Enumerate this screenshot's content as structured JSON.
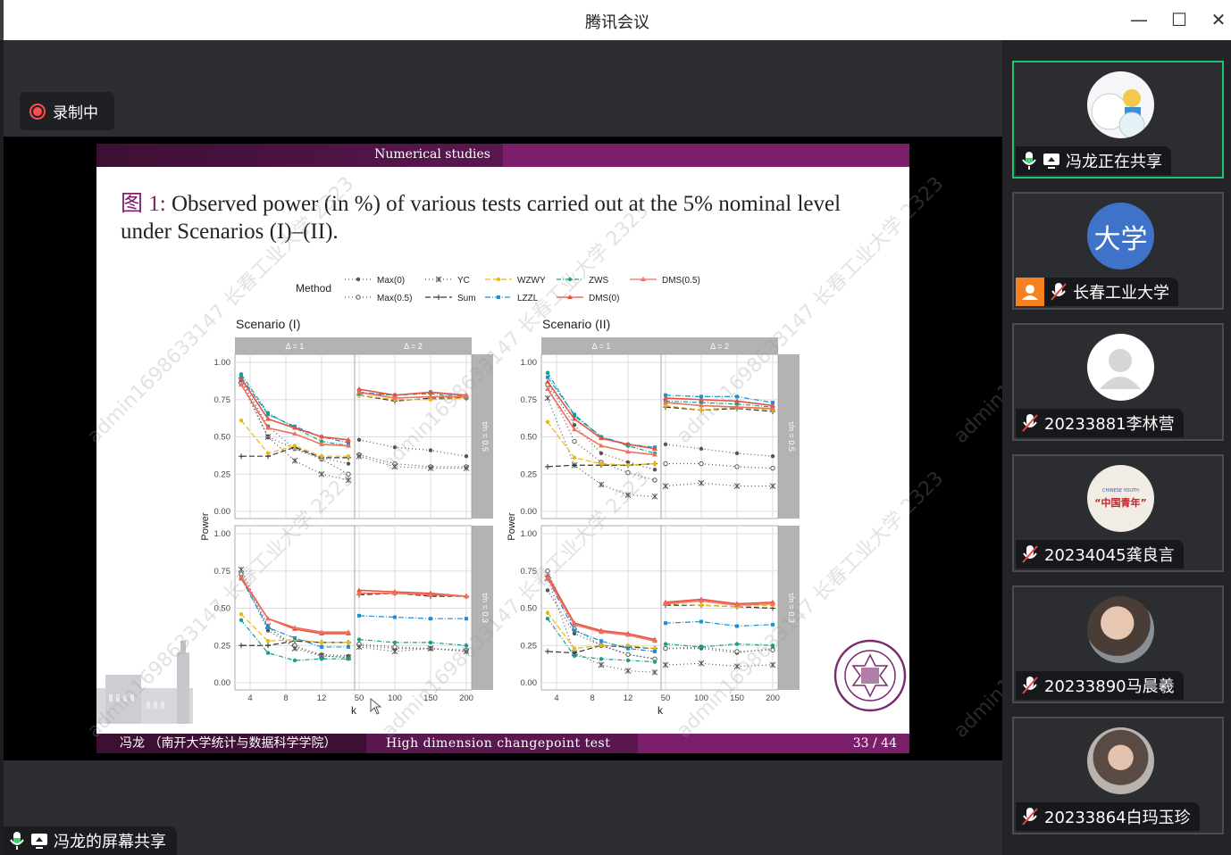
{
  "window": {
    "title": "腾讯会议"
  },
  "recording": {
    "label": "录制中"
  },
  "slide": {
    "header": "Numerical studies",
    "figure_prefix": "图 1:",
    "caption": " Observed power (in %) of various tests carried out at the 5% nominal level under Scenarios (I)–(II).",
    "footer_author": "冯龙 （南开大学统计与数据科学学院）",
    "footer_title": "High dimension changepoint test",
    "footer_page": "33 / 44",
    "seal_text": "NANKAI UNIVERSITY 1919"
  },
  "watermark": "admin1698633147 长春工业大学 2323",
  "chart_data": {
    "type": "line",
    "legend": {
      "title": "Method",
      "placement": "top",
      "entries": [
        "Max(0)",
        "Max(0.5)",
        "YC",
        "Sum",
        "WZWY",
        "LZZL",
        "ZWS",
        "DMS(0)",
        "DMS(0.5)"
      ]
    },
    "colors": {
      "Max(0)": "#555555",
      "Max(0.5)": "#555555",
      "YC": "#555555",
      "Sum": "#333333",
      "WZWY": "#e8b90c",
      "LZZL": "#1b8fd8",
      "ZWS": "#16a08a",
      "DMS(0)": "#e8523f",
      "DMS(0.5)": "#f07060"
    },
    "ylabel": "Power",
    "xlabel": "k",
    "ylim": [
      0,
      1
    ],
    "yticks": [
      "0.00",
      "0.25",
      "0.50",
      "0.75",
      "1.00"
    ],
    "facet_cols": [
      "Δ = 1",
      "Δ = 2"
    ],
    "facet_rows": [
      "τ/n = 0.5",
      "τ/n = 0.3"
    ],
    "x_delta1": [
      3,
      6,
      9,
      12,
      15
    ],
    "xticks_delta1": [
      "4",
      "8",
      "12"
    ],
    "x_delta2": [
      50,
      100,
      150,
      200
    ],
    "xticks_delta2": [
      "50",
      "100",
      "150",
      "200"
    ],
    "scenarios": [
      {
        "title": "Scenario (I)",
        "panels": [
          {
            "row": 0,
            "col": 0,
            "values": {
              "Max(0)": [
                0.88,
                0.57,
                0.42,
                0.36,
                0.32
              ],
              "Max(0.5)": [
                0.86,
                0.5,
                0.42,
                0.35,
                0.25
              ],
              "YC": [
                0.88,
                0.5,
                0.34,
                0.25,
                0.21
              ],
              "Sum": [
                0.37,
                0.37,
                0.43,
                0.36,
                0.36
              ],
              "WZWY": [
                0.61,
                0.39,
                0.44,
                0.37,
                0.37
              ],
              "LZZL": [
                0.9,
                0.65,
                0.57,
                0.5,
                0.46
              ],
              "ZWS": [
                0.92,
                0.66,
                0.56,
                0.47,
                0.44
              ],
              "DMS(0)": [
                0.89,
                0.62,
                0.56,
                0.5,
                0.48
              ],
              "DMS(0.5)": [
                0.85,
                0.56,
                0.52,
                0.45,
                0.44
              ]
            }
          },
          {
            "row": 0,
            "col": 1,
            "values": {
              "Max(0)": [
                0.48,
                0.43,
                0.41,
                0.37
              ],
              "Max(0.5)": [
                0.38,
                0.32,
                0.3,
                0.3
              ],
              "YC": [
                0.37,
                0.3,
                0.29,
                0.29
              ],
              "Sum": [
                0.78,
                0.74,
                0.76,
                0.76
              ],
              "WZWY": [
                0.78,
                0.75,
                0.75,
                0.76
              ],
              "LZZL": [
                0.8,
                0.78,
                0.8,
                0.77
              ],
              "ZWS": [
                0.79,
                0.78,
                0.79,
                0.76
              ],
              "DMS(0)": [
                0.82,
                0.78,
                0.8,
                0.78
              ],
              "DMS(0.5)": [
                0.8,
                0.76,
                0.77,
                0.77
              ]
            }
          },
          {
            "row": 1,
            "col": 0,
            "values": {
              "Max(0)": [
                0.72,
                0.35,
                0.24,
                0.19,
                0.18
              ],
              "Max(0.5)": [
                0.73,
                0.37,
                0.25,
                0.18,
                0.17
              ],
              "YC": [
                0.76,
                0.38,
                0.23,
                0.18,
                0.17
              ],
              "Sum": [
                0.25,
                0.25,
                0.28,
                0.27,
                0.27
              ],
              "WZWY": [
                0.46,
                0.28,
                0.29,
                0.27,
                0.27
              ],
              "LZZL": [
                0.7,
                0.37,
                0.3,
                0.24,
                0.24
              ],
              "ZWS": [
                0.42,
                0.2,
                0.15,
                0.16,
                0.16
              ],
              "DMS(0)": [
                0.7,
                0.43,
                0.36,
                0.33,
                0.33
              ],
              "DMS(0.5)": [
                0.71,
                0.43,
                0.37,
                0.34,
                0.34
              ]
            }
          },
          {
            "row": 1,
            "col": 1,
            "values": {
              "Max(0)": [
                0.25,
                0.23,
                0.23,
                0.21
              ],
              "Max(0.5)": [
                0.26,
                0.24,
                0.23,
                0.22
              ],
              "YC": [
                0.24,
                0.21,
                0.23,
                0.21
              ],
              "Sum": [
                0.59,
                0.6,
                0.58,
                0.58
              ],
              "WZWY": [
                0.6,
                0.6,
                0.59,
                0.58
              ],
              "LZZL": [
                0.45,
                0.44,
                0.43,
                0.43
              ],
              "ZWS": [
                0.29,
                0.27,
                0.27,
                0.25
              ],
              "DMS(0)": [
                0.62,
                0.61,
                0.6,
                0.58
              ],
              "DMS(0.5)": [
                0.6,
                0.6,
                0.59,
                0.58
              ]
            }
          }
        ]
      },
      {
        "title": "Scenario (II)",
        "panels": [
          {
            "row": 0,
            "col": 0,
            "values": {
              "Max(0)": [
                0.86,
                0.58,
                0.39,
                0.33,
                0.28
              ],
              "Max(0.5)": [
                0.85,
                0.47,
                0.33,
                0.26,
                0.21
              ],
              "YC": [
                0.76,
                0.31,
                0.18,
                0.11,
                0.1
              ],
              "Sum": [
                0.3,
                0.31,
                0.31,
                0.31,
                0.32
              ],
              "WZWY": [
                0.6,
                0.36,
                0.32,
                0.31,
                0.32
              ],
              "LZZL": [
                0.9,
                0.65,
                0.5,
                0.45,
                0.43
              ],
              "ZWS": [
                0.93,
                0.64,
                0.5,
                0.44,
                0.39
              ],
              "DMS(0)": [
                0.87,
                0.62,
                0.49,
                0.45,
                0.42
              ],
              "DMS(0.5)": [
                0.82,
                0.55,
                0.44,
                0.4,
                0.38
              ]
            }
          },
          {
            "row": 0,
            "col": 1,
            "values": {
              "Max(0)": [
                0.45,
                0.42,
                0.39,
                0.37
              ],
              "Max(0.5)": [
                0.32,
                0.32,
                0.3,
                0.29
              ],
              "YC": [
                0.17,
                0.19,
                0.17,
                0.17
              ],
              "Sum": [
                0.7,
                0.68,
                0.69,
                0.67
              ],
              "WZWY": [
                0.71,
                0.68,
                0.7,
                0.68
              ],
              "LZZL": [
                0.78,
                0.77,
                0.77,
                0.73
              ],
              "ZWS": [
                0.74,
                0.73,
                0.72,
                0.7
              ],
              "DMS(0)": [
                0.76,
                0.75,
                0.74,
                0.71
              ],
              "DMS(0.5)": [
                0.73,
                0.71,
                0.7,
                0.69
              ]
            }
          },
          {
            "row": 1,
            "col": 0,
            "values": {
              "Max(0)": [
                0.62,
                0.33,
                0.25,
                0.19,
                0.16
              ],
              "Max(0.5)": [
                0.75,
                0.36,
                0.25,
                0.19,
                0.16
              ],
              "YC": [
                0.7,
                0.2,
                0.12,
                0.08,
                0.07
              ],
              "Sum": [
                0.21,
                0.2,
                0.25,
                0.24,
                0.23
              ],
              "WZWY": [
                0.47,
                0.23,
                0.25,
                0.25,
                0.23
              ],
              "LZZL": [
                0.7,
                0.35,
                0.28,
                0.23,
                0.21
              ],
              "ZWS": [
                0.43,
                0.18,
                0.16,
                0.15,
                0.14
              ],
              "DMS(0)": [
                0.72,
                0.4,
                0.35,
                0.33,
                0.29
              ],
              "DMS(0.5)": [
                0.7,
                0.39,
                0.34,
                0.32,
                0.28
              ]
            }
          },
          {
            "row": 1,
            "col": 1,
            "values": {
              "Max(0)": [
                0.23,
                0.23,
                0.2,
                0.23
              ],
              "Max(0.5)": [
                0.23,
                0.24,
                0.21,
                0.22
              ],
              "YC": [
                0.12,
                0.13,
                0.11,
                0.12
              ],
              "Sum": [
                0.52,
                0.52,
                0.51,
                0.5
              ],
              "WZWY": [
                0.53,
                0.52,
                0.51,
                0.52
              ],
              "LZZL": [
                0.4,
                0.41,
                0.38,
                0.39
              ],
              "ZWS": [
                0.26,
                0.24,
                0.26,
                0.25
              ],
              "DMS(0)": [
                0.54,
                0.56,
                0.53,
                0.54
              ],
              "DMS(0.5)": [
                0.53,
                0.55,
                0.52,
                0.53
              ]
            }
          }
        ]
      }
    ]
  },
  "participants": [
    {
      "name": "冯龙正在共享",
      "avatar": "cartoon-avatar",
      "mic": "on",
      "sharing": true,
      "active": true
    },
    {
      "name": "长春工业大学",
      "avatar_text": "大学",
      "avatar_color": "#3e73c9",
      "mic": "off",
      "host_badge": true
    },
    {
      "name": "20233881李林营",
      "avatar": "default-avatar",
      "mic": "off"
    },
    {
      "name": "20234045龚良言",
      "avatar_text": "“中国青年”",
      "avatar_subtext": "CHINESE YOUTH",
      "mic": "off"
    },
    {
      "name": "20233890马晨羲",
      "avatar": "photo-avatar",
      "mic": "off"
    },
    {
      "name": "20233864白玛玉珍",
      "avatar": "photo-avatar",
      "mic": "off"
    }
  ],
  "share_label": "冯龙的屏幕共享"
}
